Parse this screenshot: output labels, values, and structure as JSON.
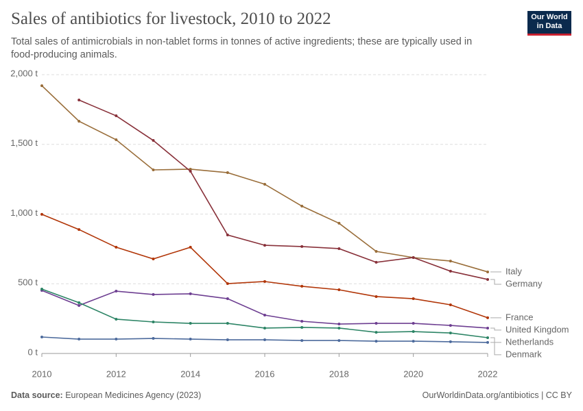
{
  "chart_data": {
    "type": "line",
    "title": "Sales of antibiotics for livestock, 2010 to 2022",
    "subtitle": "Total sales of antimicrobials in non-tablet forms in tonnes of active ingredients; these are typically used in food-producing animals.",
    "logo": "Our World in Data",
    "source_label": "Data source:",
    "source": "European Medicines Agency (2023)",
    "credit": "OurWorldinData.org/antibiotics | CC BY",
    "x": [
      2010,
      2011,
      2012,
      2013,
      2014,
      2015,
      2016,
      2017,
      2018,
      2019,
      2020,
      2021,
      2022
    ],
    "xlim": [
      2010,
      2022
    ],
    "xticks": [
      2010,
      2012,
      2014,
      2016,
      2018,
      2020,
      2022
    ],
    "ylim": [
      0,
      2000
    ],
    "yticks": [
      {
        "value": 0,
        "label": "0 t"
      },
      {
        "value": 500,
        "label": "500 t"
      },
      {
        "value": 1000,
        "label": "1,000 t"
      },
      {
        "value": 1500,
        "label": "1,500 t"
      },
      {
        "value": 2000,
        "label": "2,000 t"
      }
    ],
    "grid": true,
    "series": [
      {
        "name": "Italy",
        "color": "#996d39",
        "values": [
          1921,
          1666,
          1533,
          1317,
          1322,
          1297,
          1214,
          1057,
          934,
          732,
          688,
          663,
          585
        ]
      },
      {
        "name": "Germany",
        "color": "#883039",
        "values": [
          null,
          1818,
          1705,
          1528,
          1307,
          850,
          776,
          767,
          752,
          654,
          688,
          590,
          531
        ]
      },
      {
        "name": "France",
        "color": "#b13507",
        "values": [
          998,
          889,
          762,
          678,
          762,
          501,
          516,
          482,
          457,
          408,
          393,
          349,
          256
        ]
      },
      {
        "name": "United Kingdom",
        "color": "#6d3e91",
        "values": [
          452,
          344,
          447,
          423,
          428,
          393,
          275,
          231,
          211,
          216,
          216,
          201,
          182
        ]
      },
      {
        "name": "Netherlands",
        "color": "#2c8465",
        "values": [
          462,
          364,
          246,
          226,
          216,
          216,
          182,
          187,
          182,
          152,
          157,
          147,
          113
        ]
      },
      {
        "name": "Denmark",
        "color": "#4c6a9c",
        "values": [
          118,
          103,
          103,
          108,
          103,
          98,
          98,
          93,
          93,
          88,
          88,
          84,
          79
        ]
      }
    ]
  }
}
